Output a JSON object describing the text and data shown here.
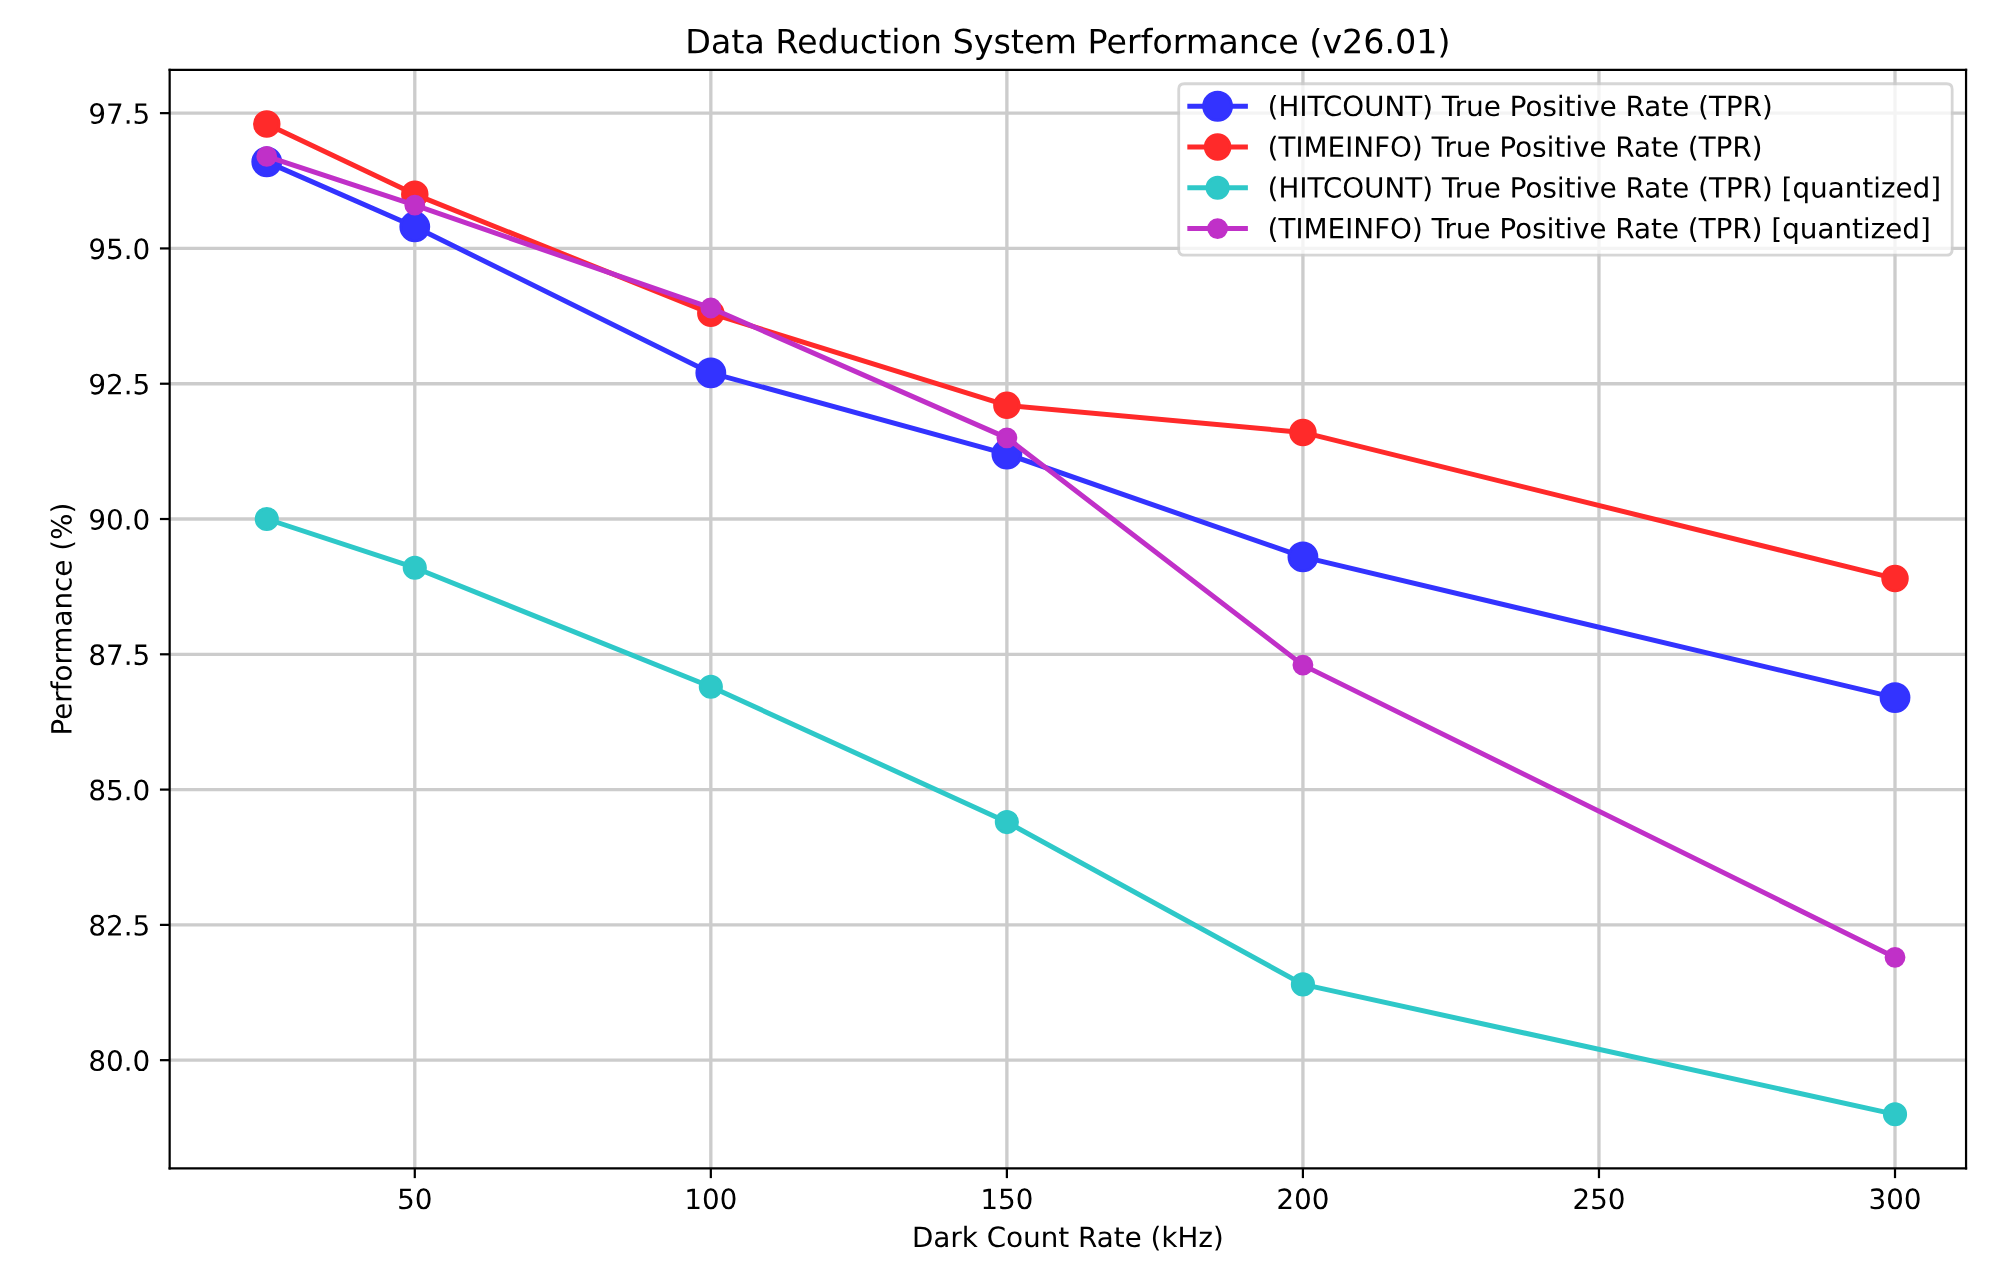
{
  "chart_data": {
    "type": "line",
    "title": "Data Reduction System Performance (v26.01)",
    "xlabel": "Dark Count Rate (kHz)",
    "ylabel": "Performance (%)",
    "x": [
      25,
      50,
      100,
      150,
      200,
      300
    ],
    "series": [
      {
        "name": "(HITCOUNT) True Positive Rate (TPR)",
        "color": "#3333ff",
        "values": [
          96.6,
          95.4,
          92.7,
          91.2,
          89.3,
          86.7
        ]
      },
      {
        "name": "(TIMEINFO) True Positive Rate (TPR)",
        "color": "#ff2a2a",
        "values": [
          97.3,
          96.0,
          93.8,
          92.1,
          91.6,
          88.9
        ]
      },
      {
        "name": "(HITCOUNT) True Positive Rate (TPR) [quantized]",
        "color": "#2ec8c8",
        "values": [
          90.0,
          89.1,
          86.9,
          84.4,
          81.4,
          79.0
        ]
      },
      {
        "name": "(TIMEINFO) True Positive Rate (TPR) [quantized]",
        "color": "#c030c8",
        "values": [
          96.7,
          95.8,
          93.9,
          91.5,
          87.3,
          81.9
        ]
      }
    ],
    "xlim": [
      8.6,
      312
    ],
    "ylim": [
      78.0,
      98.3
    ],
    "xticks": [
      50,
      100,
      150,
      200,
      250,
      300
    ],
    "yticks": [
      {
        "value": 80,
        "label": "80.0"
      },
      {
        "value": 82.5,
        "label": "82.5"
      },
      {
        "value": 85,
        "label": "85.0"
      },
      {
        "value": 87.5,
        "label": "87.5"
      },
      {
        "value": 90,
        "label": "90.0"
      },
      {
        "value": 92.5,
        "label": "92.5"
      },
      {
        "value": 95,
        "label": "95.0"
      },
      {
        "value": 97.5,
        "label": "97.5"
      }
    ],
    "grid": true,
    "legend": "top right",
    "marker": "circle",
    "line_style": "solid"
  }
}
